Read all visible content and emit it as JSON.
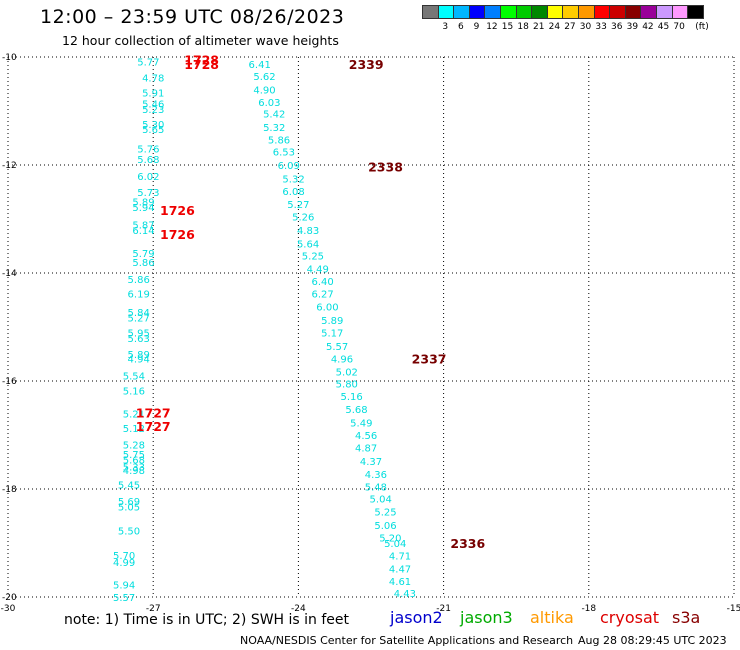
{
  "title": "12:00 – 23:59 UTC 08/26/2023",
  "subtitle": "12 hour collection of altimeter wave heights",
  "colorbar": {
    "colors": [
      "#777777",
      "#00ffff",
      "#00b7ff",
      "#0000ff",
      "#007fff",
      "#00ff00",
      "#00cc00",
      "#008800",
      "#ffff00",
      "#ffcc00",
      "#ff9900",
      "#ff0000",
      "#cc0000",
      "#880000",
      "#990099",
      "#cc99ff",
      "#ff99ff",
      "#000000"
    ],
    "labels": [
      "3",
      "6",
      "9",
      "12",
      "15",
      "18",
      "21",
      "24",
      "27",
      "30",
      "33",
      "36",
      "39",
      "42",
      "45",
      "70"
    ],
    "unit": "(ft)"
  },
  "note": "note:  1) Time is in UTC; 2) SWH is in feet",
  "legend": [
    {
      "name": "jason2",
      "color": "#0000cc"
    },
    {
      "name": "jason3",
      "color": "#00aa00"
    },
    {
      "name": "altika",
      "color": "#ff9900"
    },
    {
      "name": "cryosat",
      "color": "#dd0000"
    },
    {
      "name": "s3a",
      "color": "#880000"
    }
  ],
  "credit": "NOAA/NESDIS Center for Satellite Applications and Research",
  "credit_time": "Aug 28 08:29:45 UTC 2023",
  "chart_data": {
    "type": "scatter",
    "xlim": [
      -30,
      -15
    ],
    "ylim": [
      -20,
      -10
    ],
    "x_ticks": [
      "-30",
      "-27",
      "-24",
      "-21",
      "-18",
      "-15"
    ],
    "y_ticks": [
      "-10",
      "-12",
      "-14",
      "-16",
      "-18",
      "-20"
    ],
    "x_tick_values": [
      -30,
      -27,
      -24,
      -21,
      -18,
      -15
    ],
    "y_tick_values": [
      -10,
      -12,
      -14,
      -16,
      -18,
      -20
    ],
    "grid": true,
    "swh_color": "#00dddd",
    "tracks": [
      {
        "name": "track-west",
        "points": [
          {
            "lon": -27.1,
            "lat": -10.08,
            "v": "5.77"
          },
          {
            "lon": -27.0,
            "lat": -10.38,
            "v": "4.78"
          },
          {
            "lon": -27.0,
            "lat": -10.66,
            "v": "5.91"
          },
          {
            "lon": -27.0,
            "lat": -10.86,
            "v": "5.46"
          },
          {
            "lon": -27.0,
            "lat": -10.96,
            "v": "5.23"
          },
          {
            "lon": -27.0,
            "lat": -11.24,
            "v": "5.30"
          },
          {
            "lon": -27.0,
            "lat": -11.33,
            "v": "5.65"
          },
          {
            "lon": -27.1,
            "lat": -11.69,
            "v": "5.76"
          },
          {
            "lon": -27.1,
            "lat": -11.89,
            "v": "5.68"
          },
          {
            "lon": -27.1,
            "lat": -12.2,
            "v": "6.02"
          },
          {
            "lon": -27.1,
            "lat": -12.5,
            "v": "5.73"
          },
          {
            "lon": -27.2,
            "lat": -12.68,
            "v": "5.89"
          },
          {
            "lon": -27.2,
            "lat": -12.78,
            "v": "5.94"
          },
          {
            "lon": -27.2,
            "lat": -13.1,
            "v": "5.87"
          },
          {
            "lon": -27.2,
            "lat": -13.2,
            "v": "6.14"
          },
          {
            "lon": -27.2,
            "lat": -13.63,
            "v": "5.79"
          },
          {
            "lon": -27.2,
            "lat": -13.8,
            "v": "5.86"
          },
          {
            "lon": -27.3,
            "lat": -14.11,
            "v": "5.86"
          },
          {
            "lon": -27.3,
            "lat": -14.38,
            "v": "6.19"
          },
          {
            "lon": -27.3,
            "lat": -14.72,
            "v": "5.84"
          },
          {
            "lon": -27.3,
            "lat": -14.82,
            "v": "5.27"
          },
          {
            "lon": -27.3,
            "lat": -15.1,
            "v": "5.95"
          },
          {
            "lon": -27.3,
            "lat": -15.2,
            "v": "5.63"
          },
          {
            "lon": -27.3,
            "lat": -15.5,
            "v": "5.89"
          },
          {
            "lon": -27.3,
            "lat": -15.58,
            "v": "4.94"
          },
          {
            "lon": -27.4,
            "lat": -15.9,
            "v": "5.54"
          },
          {
            "lon": -27.4,
            "lat": -16.18,
            "v": "5.16"
          },
          {
            "lon": -27.4,
            "lat": -16.6,
            "v": "5.21"
          },
          {
            "lon": -27.4,
            "lat": -16.87,
            "v": "5.12"
          },
          {
            "lon": -27.4,
            "lat": -17.18,
            "v": "5.28"
          },
          {
            "lon": -27.4,
            "lat": -17.35,
            "v": "5.75"
          },
          {
            "lon": -27.4,
            "lat": -17.45,
            "v": "5.68"
          },
          {
            "lon": -27.4,
            "lat": -17.58,
            "v": "5.33"
          },
          {
            "lon": -27.4,
            "lat": -17.65,
            "v": "4.98"
          },
          {
            "lon": -27.5,
            "lat": -17.92,
            "v": "5.45"
          },
          {
            "lon": -27.5,
            "lat": -18.22,
            "v": "5.69"
          },
          {
            "lon": -27.5,
            "lat": -18.32,
            "v": "5.05"
          },
          {
            "lon": -27.5,
            "lat": -18.77,
            "v": "5.50"
          },
          {
            "lon": -27.6,
            "lat": -19.22,
            "v": "5.70"
          },
          {
            "lon": -27.6,
            "lat": -19.35,
            "v": "4.99"
          },
          {
            "lon": -27.6,
            "lat": -19.77,
            "v": "5.94"
          },
          {
            "lon": -27.6,
            "lat": -20.0,
            "v": "5.57"
          }
        ],
        "times": [
          {
            "lon": -26.0,
            "lat": -10.05,
            "t": "1728"
          },
          {
            "lon": -26.0,
            "lat": -10.13,
            "t": "1728"
          },
          {
            "lon": -26.5,
            "lat": -12.83,
            "t": "1726"
          },
          {
            "lon": -26.5,
            "lat": -13.28,
            "t": "1726"
          },
          {
            "lon": -27.0,
            "lat": -16.58,
            "t": "1727"
          },
          {
            "lon": -27.0,
            "lat": -16.83,
            "t": "1727"
          }
        ],
        "time_color": "#ee0000"
      },
      {
        "name": "track-east",
        "points": [
          {
            "lon": -24.8,
            "lat": -10.13,
            "v": "6.41"
          },
          {
            "lon": -24.7,
            "lat": -10.35,
            "v": "5.62"
          },
          {
            "lon": -24.7,
            "lat": -10.6,
            "v": "4.90"
          },
          {
            "lon": -24.6,
            "lat": -10.83,
            "v": "6.03"
          },
          {
            "lon": -24.5,
            "lat": -11.05,
            "v": "5.42"
          },
          {
            "lon": -24.5,
            "lat": -11.3,
            "v": "5.32"
          },
          {
            "lon": -24.4,
            "lat": -11.53,
            "v": "5.86"
          },
          {
            "lon": -24.3,
            "lat": -11.75,
            "v": "6.53"
          },
          {
            "lon": -24.2,
            "lat": -12.0,
            "v": "6.09"
          },
          {
            "lon": -24.1,
            "lat": -12.25,
            "v": "5.32"
          },
          {
            "lon": -24.1,
            "lat": -12.48,
            "v": "6.08"
          },
          {
            "lon": -24.0,
            "lat": -12.72,
            "v": "5.27"
          },
          {
            "lon": -23.9,
            "lat": -12.95,
            "v": "5.26"
          },
          {
            "lon": -23.8,
            "lat": -13.2,
            "v": "4.83"
          },
          {
            "lon": -23.8,
            "lat": -13.45,
            "v": "5.64"
          },
          {
            "lon": -23.7,
            "lat": -13.68,
            "v": "5.25"
          },
          {
            "lon": -23.6,
            "lat": -13.92,
            "v": "4.49"
          },
          {
            "lon": -23.5,
            "lat": -14.15,
            "v": "6.40"
          },
          {
            "lon": -23.5,
            "lat": -14.38,
            "v": "6.27"
          },
          {
            "lon": -23.4,
            "lat": -14.62,
            "v": "6.00"
          },
          {
            "lon": -23.3,
            "lat": -14.87,
            "v": "5.89"
          },
          {
            "lon": -23.3,
            "lat": -15.1,
            "v": "5.17"
          },
          {
            "lon": -23.2,
            "lat": -15.35,
            "v": "5.57"
          },
          {
            "lon": -23.1,
            "lat": -15.58,
            "v": "4.96"
          },
          {
            "lon": -23.0,
            "lat": -15.82,
            "v": "5.02"
          },
          {
            "lon": -23.0,
            "lat": -16.05,
            "v": "5.80"
          },
          {
            "lon": -22.9,
            "lat": -16.28,
            "v": "5.16"
          },
          {
            "lon": -22.8,
            "lat": -16.52,
            "v": "5.68"
          },
          {
            "lon": -22.7,
            "lat": -16.77,
            "v": "5.49"
          },
          {
            "lon": -22.6,
            "lat": -17.0,
            "v": "4.56"
          },
          {
            "lon": -22.6,
            "lat": -17.23,
            "v": "4.87"
          },
          {
            "lon": -22.5,
            "lat": -17.48,
            "v": "4.37"
          },
          {
            "lon": -22.4,
            "lat": -17.72,
            "v": "4.36"
          },
          {
            "lon": -22.4,
            "lat": -17.95,
            "v": "5.48"
          },
          {
            "lon": -22.3,
            "lat": -18.18,
            "v": "5.04"
          },
          {
            "lon": -22.2,
            "lat": -18.42,
            "v": "5.25"
          },
          {
            "lon": -22.2,
            "lat": -18.67,
            "v": "5.06"
          },
          {
            "lon": -22.1,
            "lat": -18.9,
            "v": "5.20"
          },
          {
            "lon": -22.0,
            "lat": -19.0,
            "v": "5.04"
          },
          {
            "lon": -21.9,
            "lat": -19.23,
            "v": "4.71"
          },
          {
            "lon": -21.9,
            "lat": -19.47,
            "v": "4.47"
          },
          {
            "lon": -21.9,
            "lat": -19.7,
            "v": "4.61"
          },
          {
            "lon": -21.8,
            "lat": -19.93,
            "v": "4.43"
          }
        ],
        "times": [
          {
            "lon": -22.6,
            "lat": -10.13,
            "t": "2339"
          },
          {
            "lon": -22.2,
            "lat": -12.03,
            "t": "2338"
          },
          {
            "lon": -21.3,
            "lat": -15.58,
            "t": "2337"
          },
          {
            "lon": -20.5,
            "lat": -19.0,
            "t": "2336"
          }
        ],
        "time_color": "#770000"
      }
    ]
  }
}
